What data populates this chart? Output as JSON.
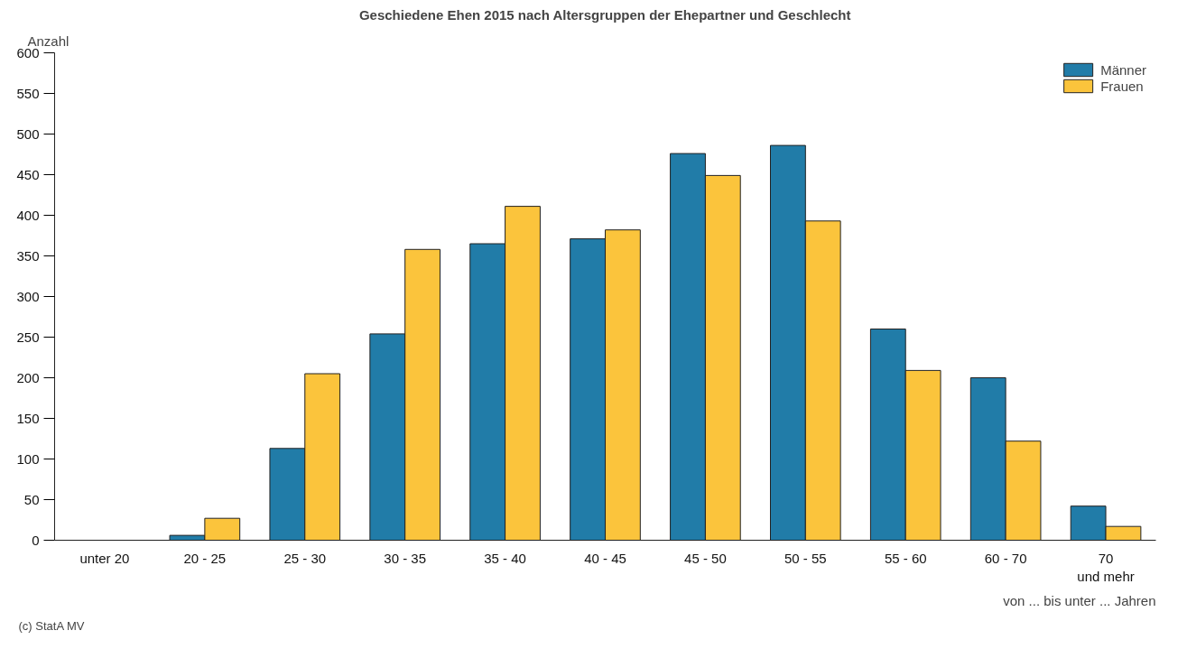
{
  "chart_data": {
    "type": "bar",
    "title": "Geschiedene Ehen 2015 nach Altersgruppen der Ehepartner und Geschlecht",
    "ylabel": "Anzahl",
    "xlabel": "von ... bis unter ... Jahren",
    "annotations": [
      "(c) StatA MV"
    ],
    "categories": [
      "unter 20",
      "20 - 25",
      "25 - 30",
      "30 - 35",
      "35 - 40",
      "40 - 45",
      "45 - 50",
      "50 - 55",
      "55 - 60",
      "60 - 70",
      "70\nund mehr"
    ],
    "series": [
      {
        "name": "Männer",
        "color": "#217ca8",
        "values": [
          null,
          6,
          113,
          254,
          365,
          371,
          476,
          486,
          260,
          200,
          42
        ]
      },
      {
        "name": "Frauen",
        "color": "#fbc43c",
        "values": [
          null,
          27,
          205,
          358,
          411,
          382,
          449,
          393,
          209,
          122,
          17
        ]
      }
    ],
    "ylim": [
      0,
      600
    ],
    "yticks": [
      0,
      50,
      100,
      150,
      200,
      250,
      300,
      350,
      400,
      450,
      500,
      550,
      600
    ],
    "grid": false,
    "legend": "top right"
  }
}
